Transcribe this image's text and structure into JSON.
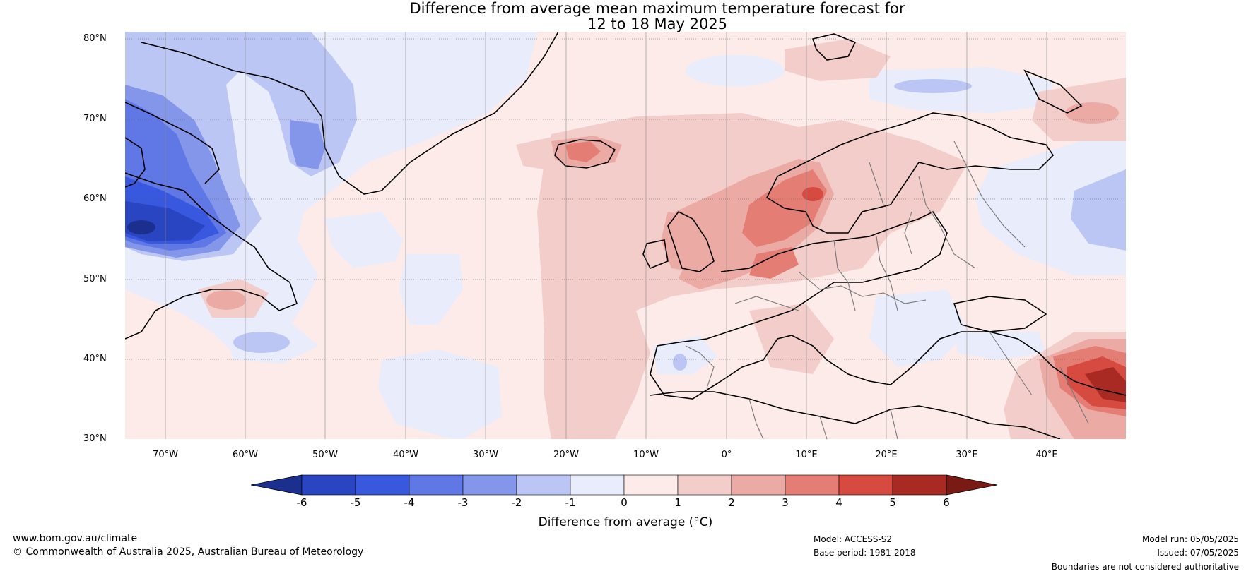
{
  "title": {
    "line1": "Difference from average mean maximum temperature forecast for",
    "line2": "12 to 18 May 2025"
  },
  "map": {
    "region": "North Atlantic and Europe",
    "lon_range": [
      -75,
      50
    ],
    "lat_range": [
      30,
      80
    ],
    "gridlines": true,
    "lat_labels": [
      "80°N",
      "70°N",
      "60°N",
      "50°N",
      "40°N",
      "30°N"
    ],
    "lon_labels": [
      "70°W",
      "60°W",
      "50°W",
      "40°W",
      "30°W",
      "20°W",
      "10°W",
      "0°",
      "10°E",
      "20°E",
      "30°E",
      "40°E"
    ]
  },
  "colorbar": {
    "tick_labels": [
      "-6",
      "-5",
      "-4",
      "-3",
      "-2",
      "-1",
      "0",
      "1",
      "2",
      "3",
      "4",
      "5",
      "6"
    ],
    "colors": [
      "#1b2f8f",
      "#2a45c2",
      "#3858e0",
      "#5f78e6",
      "#8396ea",
      "#bcc6f4",
      "#e8ecfb",
      "#fcebe9",
      "#f3cdca",
      "#ecaaa5",
      "#e47e75",
      "#d64a40",
      "#a82a23",
      "#7a1a14"
    ],
    "title": "Difference from average (°C)"
  },
  "footer": {
    "website": "www.bom.gov.au/climate",
    "copyright": "© Commonwealth of Australia 2025, Australian Bureau of Meteorology",
    "model": "Model: ACCESS-S2",
    "base_period": "Base period: 1981-2018",
    "model_run": "Model run: 05/05/2025",
    "issued": "Issued: 07/05/2025",
    "disclaimer": "Boundaries are not considered authoritative"
  }
}
